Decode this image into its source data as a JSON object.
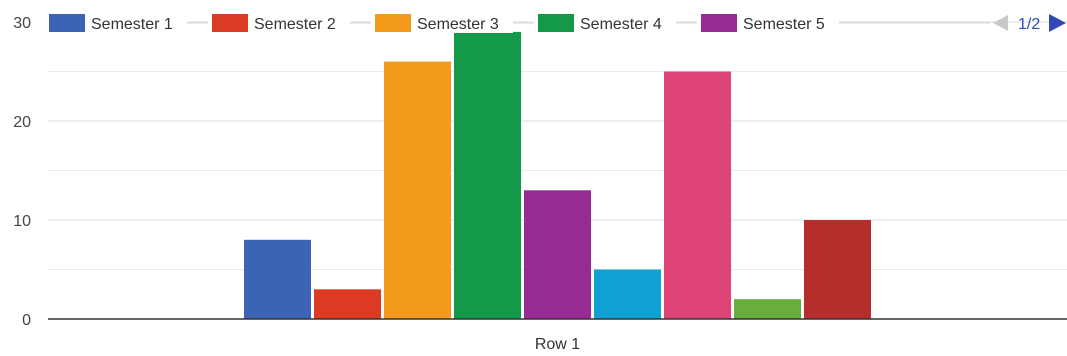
{
  "chart_data": {
    "type": "bar",
    "categories": [
      "Row 1"
    ],
    "series": [
      {
        "name": "Semester 1",
        "values": [
          8
        ],
        "color": "#3d63b4"
      },
      {
        "name": "Semester 2",
        "values": [
          3
        ],
        "color": "#dc3b23"
      },
      {
        "name": "Semester 3",
        "values": [
          26
        ],
        "color": "#f59b1b"
      },
      {
        "name": "Semester 4",
        "values": [
          29
        ],
        "color": "#14994a"
      },
      {
        "name": "",
        "values": [
          13
        ],
        "color": "#982a94"
      },
      {
        "name": "",
        "values": [
          5
        ],
        "color": "#0ea1d1"
      },
      {
        "name": "",
        "values": [
          25
        ],
        "color": "#de4375"
      },
      {
        "name": "",
        "values": [
          2
        ],
        "color": "#6aad3f"
      },
      {
        "name": "",
        "values": [
          10
        ],
        "color": "#b62e2b"
      }
    ],
    "legend": [
      {
        "label": "Semester 1",
        "color": "#3d63b4"
      },
      {
        "label": "Semester 2",
        "color": "#dc3b23"
      },
      {
        "label": "Semester 3",
        "color": "#f59b1b"
      },
      {
        "label": "Semester 4",
        "color": "#14994a"
      },
      {
        "label": "Semester 5",
        "color": "#982a94"
      }
    ],
    "legend_position": "top",
    "legend_pager": "1/2",
    "yticks": [
      0,
      10,
      20,
      30
    ],
    "ylim": [
      0,
      30
    ],
    "grid": true,
    "title": "",
    "xlabel": "",
    "ylabel": ""
  },
  "colors": {
    "grid": "#e3e3e3",
    "axis": "#333333",
    "pager_active": "#2f49b5",
    "pager_inactive": "#c9c9c9"
  }
}
